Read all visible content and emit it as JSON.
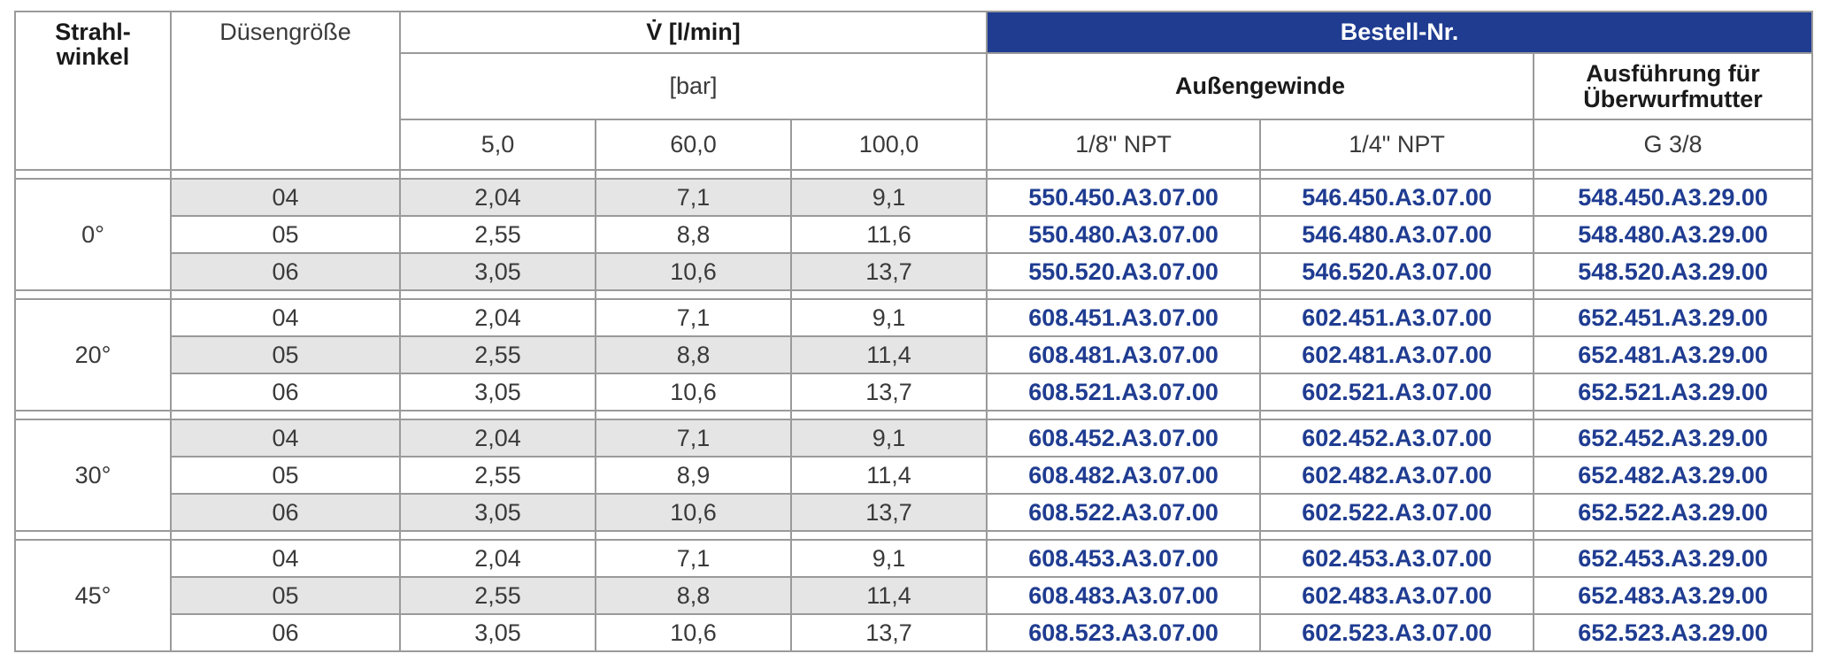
{
  "header": {
    "strahlwinkel_line1": "Strahl-",
    "strahlwinkel_line2": "winkel",
    "duesengroesse": "Düsengröße",
    "flow": "V̇ [l/min]",
    "bar": "[bar]",
    "bestell_nr": "Bestell-Nr.",
    "aussengewinde": "Außengewinde",
    "ausfuehrung_line1": "Ausführung für",
    "ausfuehrung_line2": "Überwurfmutter",
    "pressures": [
      "5,0",
      "60,0",
      "100,0"
    ],
    "threads": [
      "1/8\" NPT",
      "1/4\" NPT",
      "G 3/8"
    ]
  },
  "groups": [
    {
      "angle": "0°",
      "rows": [
        {
          "size": "04",
          "p5": "2,04",
          "p60": "7,1",
          "p100": "9,1",
          "npt18": "550.450.A3.07.00",
          "npt14": "546.450.A3.07.00",
          "g38": "548.450.A3.29.00"
        },
        {
          "size": "05",
          "p5": "2,55",
          "p60": "8,8",
          "p100": "11,6",
          "npt18": "550.480.A3.07.00",
          "npt14": "546.480.A3.07.00",
          "g38": "548.480.A3.29.00"
        },
        {
          "size": "06",
          "p5": "3,05",
          "p60": "10,6",
          "p100": "13,7",
          "npt18": "550.520.A3.07.00",
          "npt14": "546.520.A3.07.00",
          "g38": "548.520.A3.29.00"
        }
      ]
    },
    {
      "angle": "20°",
      "rows": [
        {
          "size": "04",
          "p5": "2,04",
          "p60": "7,1",
          "p100": "9,1",
          "npt18": "608.451.A3.07.00",
          "npt14": "602.451.A3.07.00",
          "g38": "652.451.A3.29.00"
        },
        {
          "size": "05",
          "p5": "2,55",
          "p60": "8,8",
          "p100": "11,4",
          "npt18": "608.481.A3.07.00",
          "npt14": "602.481.A3.07.00",
          "g38": "652.481.A3.29.00"
        },
        {
          "size": "06",
          "p5": "3,05",
          "p60": "10,6",
          "p100": "13,7",
          "npt18": "608.521.A3.07.00",
          "npt14": "602.521.A3.07.00",
          "g38": "652.521.A3.29.00"
        }
      ]
    },
    {
      "angle": "30°",
      "rows": [
        {
          "size": "04",
          "p5": "2,04",
          "p60": "7,1",
          "p100": "9,1",
          "npt18": "608.452.A3.07.00",
          "npt14": "602.452.A3.07.00",
          "g38": "652.452.A3.29.00"
        },
        {
          "size": "05",
          "p5": "2,55",
          "p60": "8,9",
          "p100": "11,4",
          "npt18": "608.482.A3.07.00",
          "npt14": "602.482.A3.07.00",
          "g38": "652.482.A3.29.00"
        },
        {
          "size": "06",
          "p5": "3,05",
          "p60": "10,6",
          "p100": "13,7",
          "npt18": "608.522.A3.07.00",
          "npt14": "602.522.A3.07.00",
          "g38": "652.522.A3.29.00"
        }
      ]
    },
    {
      "angle": "45°",
      "rows": [
        {
          "size": "04",
          "p5": "2,04",
          "p60": "7,1",
          "p100": "9,1",
          "npt18": "608.453.A3.07.00",
          "npt14": "602.453.A3.07.00",
          "g38": "652.453.A3.29.00"
        },
        {
          "size": "05",
          "p5": "2,55",
          "p60": "8,8",
          "p100": "11,4",
          "npt18": "608.483.A3.07.00",
          "npt14": "602.483.A3.07.00",
          "g38": "652.483.A3.29.00"
        },
        {
          "size": "06",
          "p5": "3,05",
          "p60": "10,6",
          "p100": "13,7",
          "npt18": "608.523.A3.07.00",
          "npt14": "602.523.A3.07.00",
          "g38": "652.523.A3.29.00"
        }
      ]
    }
  ],
  "colors": {
    "accent_blue": "#1f3c91",
    "row_shade": "#e5e5e5",
    "border": "#9a9a9a"
  }
}
